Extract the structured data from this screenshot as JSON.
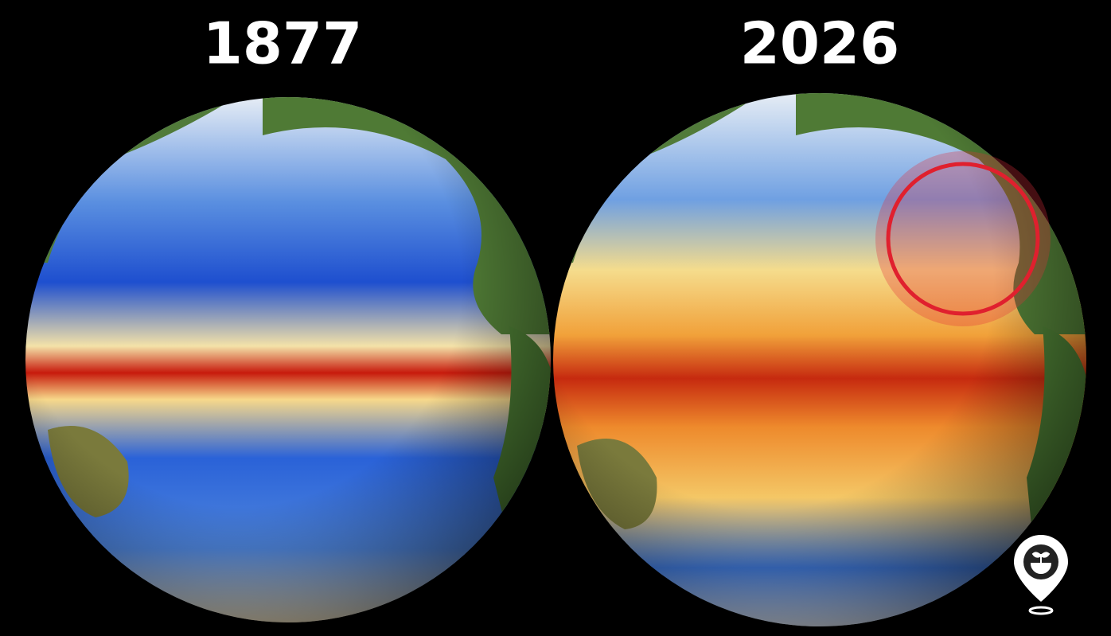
{
  "left": {
    "title": "1877"
  },
  "right": {
    "title": "2026"
  }
}
